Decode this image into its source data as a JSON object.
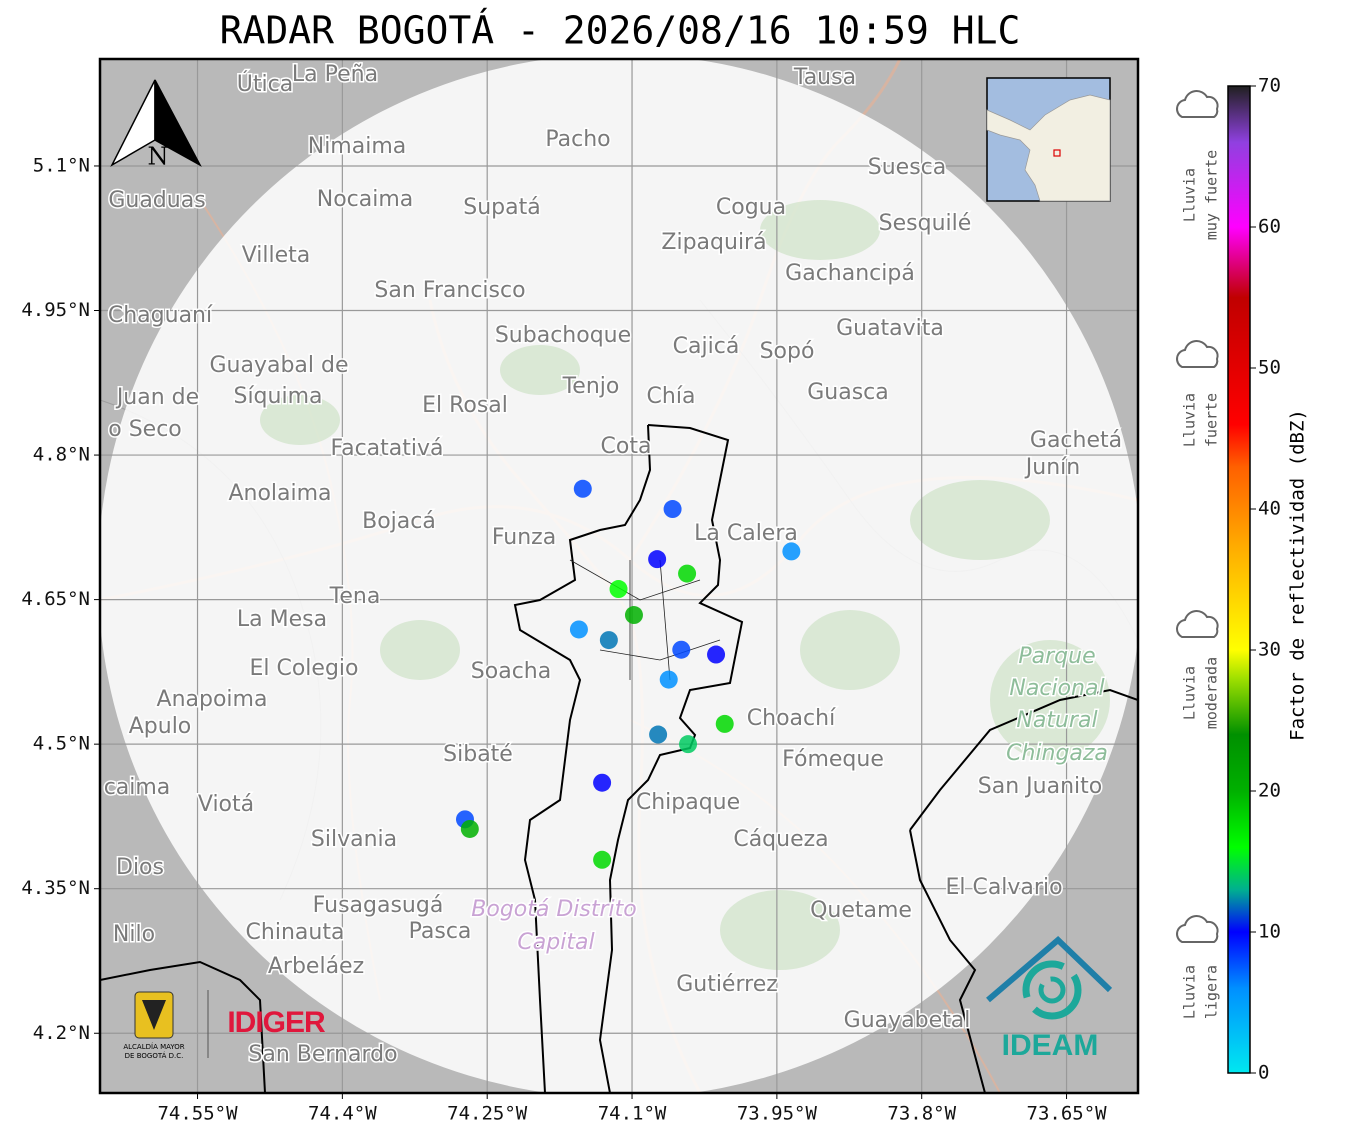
{
  "title": "RADAR BOGOTÁ - 2026/08/16 10:59 HLC",
  "map": {
    "xlim": [
      -74.651,
      -73.576
    ],
    "ylim": [
      4.138,
      5.211
    ],
    "xticks": [
      {
        "value": -74.55,
        "label": "74.55°W"
      },
      {
        "value": -74.4,
        "label": "74.4°W"
      },
      {
        "value": -74.25,
        "label": "74.25°W"
      },
      {
        "value": -74.1,
        "label": "74.1°W"
      },
      {
        "value": -73.95,
        "label": "73.95°W"
      },
      {
        "value": -73.8,
        "label": "73.8°W"
      },
      {
        "value": -73.65,
        "label": "73.65°W"
      }
    ],
    "yticks": [
      {
        "value": 5.1,
        "label": "5.1°N"
      },
      {
        "value": 4.95,
        "label": "4.95°N"
      },
      {
        "value": 4.8,
        "label": "4.8°N"
      },
      {
        "value": 4.65,
        "label": "4.65°N"
      },
      {
        "value": 4.5,
        "label": "4.5°N"
      },
      {
        "value": 4.35,
        "label": "4.35°N"
      },
      {
        "value": 4.2,
        "label": "4.2°N"
      }
    ],
    "grid": true,
    "north_label": "N",
    "places": [
      "Útica",
      "La Peña",
      "Tausa",
      "Pacho",
      "Nimaima",
      "Suesca",
      "Guaduas",
      "Nocaima",
      "Supatá",
      "Cogua",
      "Zipaquirá",
      "Sesquilé",
      "Villeta",
      "Gachancipá",
      "San Francisco",
      "Chaguaní",
      "Guatavita",
      "Subachoque",
      "Cajicá",
      "Sopó",
      "Guayabal de",
      "Síquima",
      "Juan de",
      "o Seco",
      "Tenjo",
      "Chía",
      "Guasca",
      "El Rosal",
      "Facatativá",
      "Cota",
      "Gachetá",
      "Junín",
      "Anolaima",
      "Bojacá",
      "Funza",
      "La Calera",
      "Tena",
      "La Mesa",
      "El Colegio",
      "Soacha",
      "Parque",
      "Nacional",
      "Natural",
      "Chingaza",
      "Anapoima",
      "Apulo",
      "Choachí",
      "Sibaté",
      "Fómeque",
      "San Juanito",
      "caima",
      "Viotá",
      "Chipaque",
      "Silvania",
      "Cáqueza",
      "Dios",
      "El Calvario",
      "Fusagasugá",
      "Bogotá Distrito",
      "Capital",
      "Quetame",
      "Nilo",
      "Chinauta",
      "Pasca",
      "Arbeláez",
      "Gutiérrez",
      "Guayabetal",
      "San Bernardo"
    ],
    "echoes": [
      {
        "lon": -74.151,
        "lat": 4.765,
        "dbz": 8
      },
      {
        "lon": -74.058,
        "lat": 4.744,
        "dbz": 8
      },
      {
        "lon": -74.074,
        "lat": 4.692,
        "dbz": 10
      },
      {
        "lon": -74.043,
        "lat": 4.677,
        "dbz": 18
      },
      {
        "lon": -74.114,
        "lat": 4.661,
        "dbz": 16
      },
      {
        "lon": -74.098,
        "lat": 4.634,
        "dbz": 20
      },
      {
        "lon": -74.124,
        "lat": 4.608,
        "dbz": 12
      },
      {
        "lon": -74.155,
        "lat": 4.619,
        "dbz": 6
      },
      {
        "lon": -74.049,
        "lat": 4.598,
        "dbz": 8
      },
      {
        "lon": -74.013,
        "lat": 4.593,
        "dbz": 10
      },
      {
        "lon": -74.062,
        "lat": 4.567,
        "dbz": 6
      },
      {
        "lon": -74.073,
        "lat": 4.51,
        "dbz": 12
      },
      {
        "lon": -74.042,
        "lat": 4.5,
        "dbz": 14
      },
      {
        "lon": -74.004,
        "lat": 4.521,
        "dbz": 18
      },
      {
        "lon": -74.273,
        "lat": 4.422,
        "dbz": 8
      },
      {
        "lon": -74.268,
        "lat": 4.412,
        "dbz": 20
      },
      {
        "lon": -74.131,
        "lat": 4.46,
        "dbz": 10
      },
      {
        "lon": -74.131,
        "lat": 4.38,
        "dbz": 18
      },
      {
        "lon": -73.935,
        "lat": 4.7,
        "dbz": 6
      }
    ]
  },
  "colorbar": {
    "label": "Factor de reflectividad (dBZ)",
    "lim": [
      0,
      70
    ],
    "ticks": [
      0,
      10,
      20,
      30,
      40,
      50,
      60,
      70
    ],
    "colormap": [
      {
        "value": 0,
        "color": "#00e8f0"
      },
      {
        "value": 6,
        "color": "#0090ff"
      },
      {
        "value": 10,
        "color": "#0000ff"
      },
      {
        "value": 13,
        "color": "#00b090"
      },
      {
        "value": 16,
        "color": "#00ff00"
      },
      {
        "value": 20,
        "color": "#00b000"
      },
      {
        "value": 24,
        "color": "#009000"
      },
      {
        "value": 28,
        "color": "#a0e000"
      },
      {
        "value": 30,
        "color": "#ffff00"
      },
      {
        "value": 37,
        "color": "#ffb000"
      },
      {
        "value": 43,
        "color": "#ff6000"
      },
      {
        "value": 46,
        "color": "#ff0000"
      },
      {
        "value": 55,
        "color": "#c00000"
      },
      {
        "value": 60,
        "color": "#ff00ff"
      },
      {
        "value": 66,
        "color": "#9040e0"
      },
      {
        "value": 70,
        "color": "#202020"
      }
    ],
    "intensity": [
      [
        "Lluvia",
        "muy fuerte"
      ],
      [
        "Lluvia",
        "fuerte"
      ],
      [
        "Lluvia",
        "moderada"
      ],
      [
        "Lluvia",
        "ligera"
      ]
    ]
  },
  "logos": {
    "alcaldia": [
      "ALCALDÍA MAYOR",
      "DE BOGOTÁ D.C."
    ],
    "idiger": "IDIGER",
    "ideam": "IDEAM"
  }
}
